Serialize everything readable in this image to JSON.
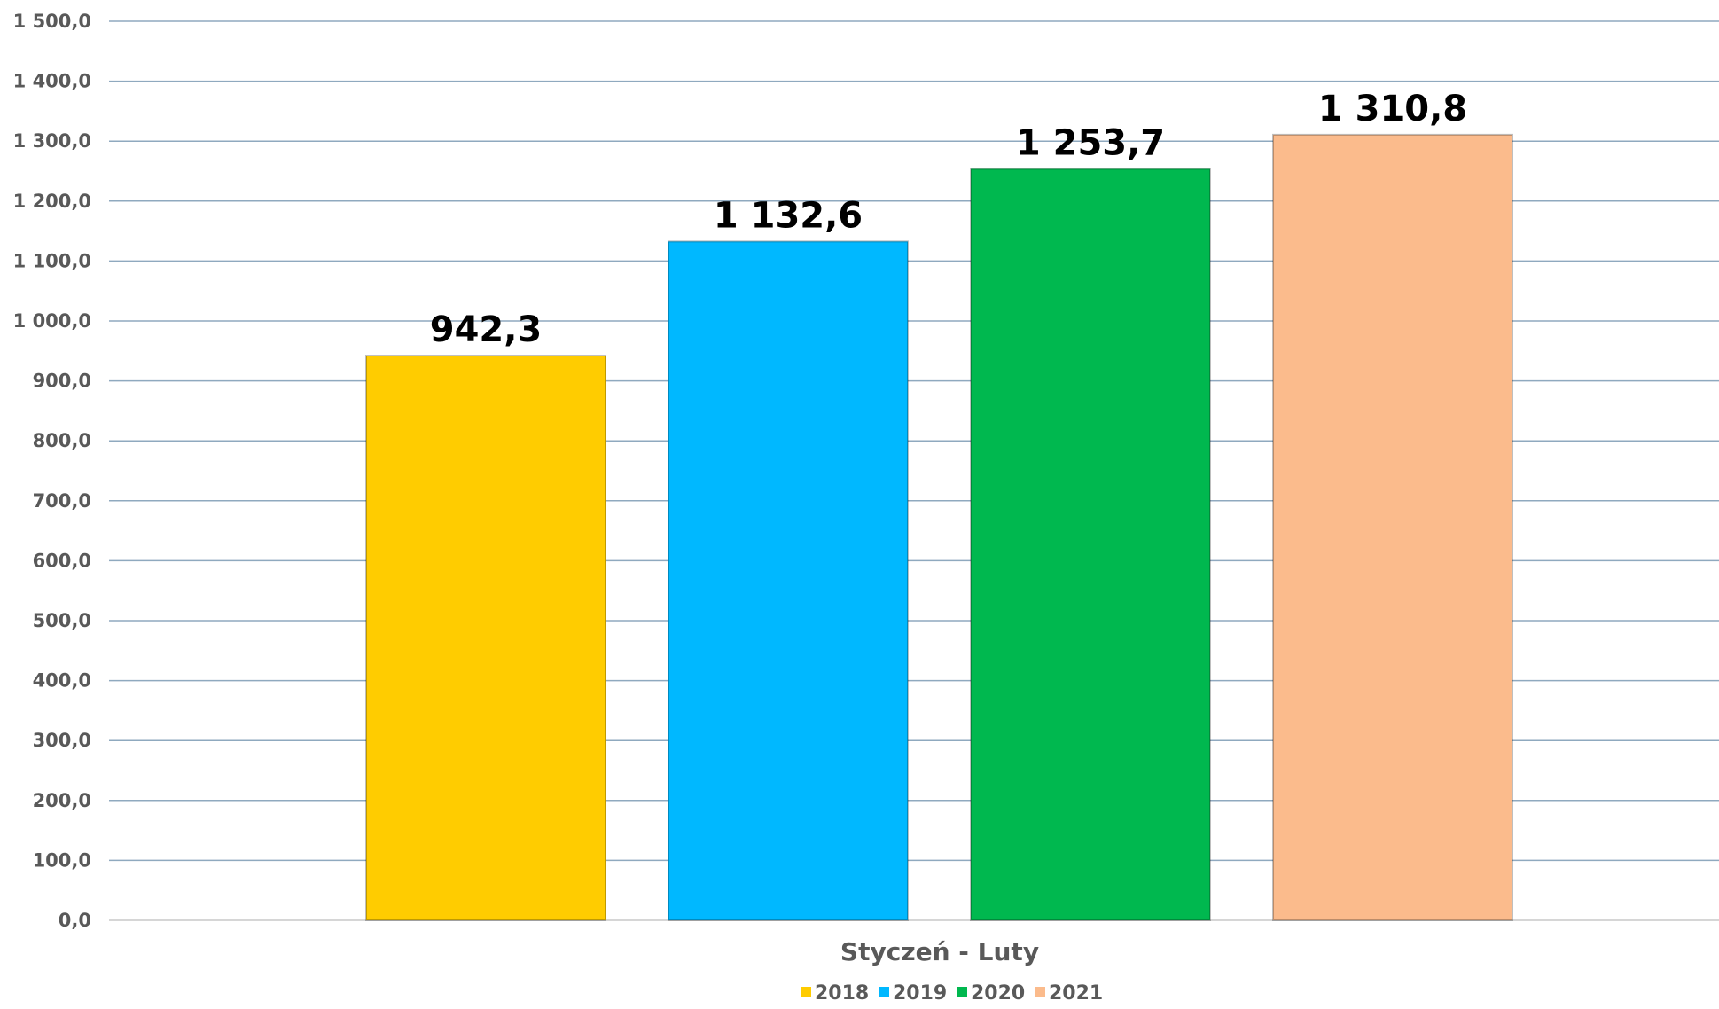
{
  "chart_data": {
    "type": "bar",
    "title": "",
    "xlabel": "",
    "ylabel": "",
    "categories": [
      "Styczeń - Luty"
    ],
    "series": [
      {
        "name": "2018",
        "values": [
          942.3
        ],
        "color": "#FFCC00",
        "label": "942,3"
      },
      {
        "name": "2019",
        "values": [
          1132.6
        ],
        "color": "#00B8FF",
        "label": "1 132,6"
      },
      {
        "name": "2020",
        "values": [
          1253.7
        ],
        "color": "#00B84F",
        "label": "1 253,7"
      },
      {
        "name": "2021",
        "values": [
          1310.8
        ],
        "color": "#FBBB8C",
        "label": "1 310,8"
      }
    ],
    "ylim": [
      0,
      1500
    ],
    "yticks": [
      0,
      100,
      200,
      300,
      400,
      500,
      600,
      700,
      800,
      900,
      1000,
      1100,
      1200,
      1300,
      1400,
      1500
    ],
    "ytick_labels": [
      "0,0",
      "100,0",
      "200,0",
      "300,0",
      "400,0",
      "500,0",
      "600,0",
      "700,0",
      "800,0",
      "900,0",
      "1 000,0",
      "1 100,0",
      "1 200,0",
      "1 300,0",
      "1 400,0",
      "1 500,0"
    ],
    "grid": true,
    "legend_position": "bottom-center"
  }
}
